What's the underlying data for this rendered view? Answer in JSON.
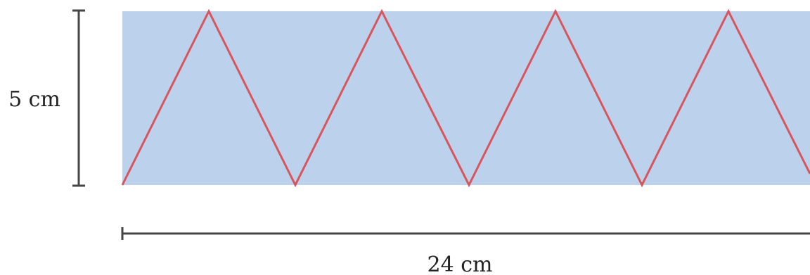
{
  "height_label": "5 cm",
  "width_label": "24 cm",
  "colors": {
    "strip_fill": "#bcd1ec",
    "zigzag_stroke": "#d8555c",
    "dimension_line": "#454545",
    "label_text": "#222222"
  }
}
